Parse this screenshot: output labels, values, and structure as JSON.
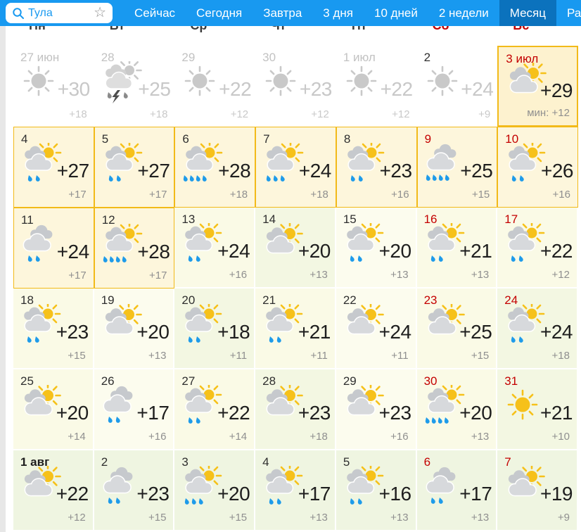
{
  "topbar": {
    "search": {
      "value": "Тула",
      "icon": "search",
      "favorite_icon": "star-outline"
    },
    "tabs": [
      {
        "label": "Сейчас",
        "active": false
      },
      {
        "label": "Сегодня",
        "active": false
      },
      {
        "label": "Завтра",
        "active": false
      },
      {
        "label": "3 дня",
        "active": false
      },
      {
        "label": "10 дней",
        "active": false
      },
      {
        "label": "2 недели",
        "active": false
      },
      {
        "label": "Месяц",
        "active": true
      },
      {
        "label": "Радар",
        "active": false
      }
    ]
  },
  "weekdays": [
    {
      "label": "Пн",
      "weekend": false
    },
    {
      "label": "Вт",
      "weekend": false
    },
    {
      "label": "Ср",
      "weekend": false
    },
    {
      "label": "Чт",
      "weekend": false
    },
    {
      "label": "Пт",
      "weekend": false
    },
    {
      "label": "Сб",
      "weekend": true
    },
    {
      "label": "Вс",
      "weekend": true
    }
  ],
  "colors": {
    "bar_blue": "#1899f0",
    "active_tab_blue": "#0b72bd",
    "weekend_red": "#c40000",
    "highlight_border": "#f2ba19",
    "highlight_bg": "#fdf6dc",
    "today_bg": "#fdf2cf",
    "rain_blue": "#1e9bea",
    "sun_yellow": "#f6c11a"
  },
  "calendar": {
    "days": [
      {
        "date": "27 июн",
        "date_style": "past",
        "icon": "sun",
        "drops": 0,
        "max": "+30",
        "min": "+18",
        "cell": "past",
        "gray": true
      },
      {
        "date": "28",
        "date_style": "past",
        "icon": "storm",
        "drops": 2,
        "max": "+25",
        "min": "+18",
        "cell": "past",
        "gray": true
      },
      {
        "date": "29",
        "date_style": "past",
        "icon": "sun",
        "drops": 0,
        "max": "+22",
        "min": "+12",
        "cell": "past",
        "gray": true
      },
      {
        "date": "30",
        "date_style": "past",
        "icon": "sun",
        "drops": 0,
        "max": "+23",
        "min": "+12",
        "cell": "past",
        "gray": true
      },
      {
        "date": "1 июл",
        "date_style": "past",
        "icon": "sun",
        "drops": 0,
        "max": "+22",
        "min": "+12",
        "cell": "past",
        "gray": true
      },
      {
        "date": "2",
        "date_style": "dark",
        "icon": "sun",
        "drops": 0,
        "max": "+24",
        "min": "+9",
        "cell": "past",
        "gray": true
      },
      {
        "date": "3 июл",
        "date_style": "today",
        "icon": "cloud-sun",
        "drops": 0,
        "max": "+29",
        "min": "мин: +12",
        "cell": "today",
        "gray": false
      },
      {
        "date": "4",
        "date_style": "normal",
        "icon": "cloud-sun-rain",
        "drops": 2,
        "max": "+27",
        "min": "+17",
        "cell": "hl",
        "gray": false
      },
      {
        "date": "5",
        "date_style": "normal",
        "icon": "cloud-sun-rain",
        "drops": 2,
        "max": "+27",
        "min": "+17",
        "cell": "hl",
        "gray": false
      },
      {
        "date": "6",
        "date_style": "normal",
        "icon": "cloud-sun-rain",
        "drops": 4,
        "max": "+28",
        "min": "+18",
        "cell": "hl",
        "gray": false
      },
      {
        "date": "7",
        "date_style": "normal",
        "icon": "cloud-sun-rain",
        "drops": 3,
        "max": "+24",
        "min": "+18",
        "cell": "hl",
        "gray": false
      },
      {
        "date": "8",
        "date_style": "normal",
        "icon": "cloud-sun-rain",
        "drops": 2,
        "max": "+23",
        "min": "+16",
        "cell": "hl",
        "gray": false
      },
      {
        "date": "9",
        "date_style": "weekend",
        "icon": "cloud-rain",
        "drops": 4,
        "max": "+25",
        "min": "+15",
        "cell": "hl",
        "gray": false
      },
      {
        "date": "10",
        "date_style": "weekend",
        "icon": "cloud-sun-rain",
        "drops": 2,
        "max": "+26",
        "min": "+16",
        "cell": "hl",
        "gray": false
      },
      {
        "date": "11",
        "date_style": "normal",
        "icon": "cloud-rain",
        "drops": 2,
        "max": "+24",
        "min": "+17",
        "cell": "hl",
        "gray": false
      },
      {
        "date": "12",
        "date_style": "normal",
        "icon": "cloud-sun-rain",
        "drops": 4,
        "max": "+28",
        "min": "+17",
        "cell": "hl",
        "gray": false
      },
      {
        "date": "13",
        "date_style": "normal",
        "icon": "cloud-sun-rain",
        "drops": 2,
        "max": "+24",
        "min": "+16",
        "cell": "t1",
        "gray": false
      },
      {
        "date": "14",
        "date_style": "normal",
        "icon": "cloud-sun",
        "drops": 0,
        "max": "+20",
        "min": "+13",
        "cell": "t2",
        "gray": false
      },
      {
        "date": "15",
        "date_style": "normal",
        "icon": "cloud-sun-rain",
        "drops": 2,
        "max": "+20",
        "min": "+13",
        "cell": "t3",
        "gray": false
      },
      {
        "date": "16",
        "date_style": "weekend",
        "icon": "cloud-sun-rain",
        "drops": 2,
        "max": "+21",
        "min": "+13",
        "cell": "t1",
        "gray": false
      },
      {
        "date": "17",
        "date_style": "weekend",
        "icon": "cloud-sun-rain",
        "drops": 2,
        "max": "+22",
        "min": "+12",
        "cell": "t1",
        "gray": false
      },
      {
        "date": "18",
        "date_style": "normal",
        "icon": "cloud-sun-rain",
        "drops": 2,
        "max": "+23",
        "min": "+15",
        "cell": "t1",
        "gray": false
      },
      {
        "date": "19",
        "date_style": "normal",
        "icon": "cloud-sun",
        "drops": 0,
        "max": "+20",
        "min": "+13",
        "cell": "t3",
        "gray": false
      },
      {
        "date": "20",
        "date_style": "normal",
        "icon": "cloud-sun-rain",
        "drops": 2,
        "max": "+18",
        "min": "+11",
        "cell": "t2",
        "gray": false
      },
      {
        "date": "21",
        "date_style": "normal",
        "icon": "cloud-sun-rain",
        "drops": 2,
        "max": "+21",
        "min": "+11",
        "cell": "t1",
        "gray": false
      },
      {
        "date": "22",
        "date_style": "normal",
        "icon": "cloud-sun",
        "drops": 0,
        "max": "+24",
        "min": "+11",
        "cell": "t3",
        "gray": false
      },
      {
        "date": "23",
        "date_style": "weekend",
        "icon": "cloud-sun",
        "drops": 0,
        "max": "+25",
        "min": "+15",
        "cell": "t1",
        "gray": false
      },
      {
        "date": "24",
        "date_style": "weekend",
        "icon": "cloud-sun-rain",
        "drops": 2,
        "max": "+24",
        "min": "+18",
        "cell": "t2",
        "gray": false
      },
      {
        "date": "25",
        "date_style": "normal",
        "icon": "cloud-sun",
        "drops": 0,
        "max": "+20",
        "min": "+14",
        "cell": "t1",
        "gray": false
      },
      {
        "date": "26",
        "date_style": "normal",
        "icon": "cloud-rain",
        "drops": 2,
        "max": "+17",
        "min": "+16",
        "cell": "t3",
        "gray": false
      },
      {
        "date": "27",
        "date_style": "normal",
        "icon": "cloud-sun-rain",
        "drops": 2,
        "max": "+22",
        "min": "+14",
        "cell": "t1",
        "gray": false
      },
      {
        "date": "28",
        "date_style": "normal",
        "icon": "cloud-sun",
        "drops": 0,
        "max": "+23",
        "min": "+18",
        "cell": "t2",
        "gray": false
      },
      {
        "date": "29",
        "date_style": "normal",
        "icon": "cloud-sun",
        "drops": 0,
        "max": "+23",
        "min": "+16",
        "cell": "t3",
        "gray": false
      },
      {
        "date": "30",
        "date_style": "weekend",
        "icon": "cloud-sun-rain",
        "drops": 4,
        "max": "+20",
        "min": "+13",
        "cell": "t1",
        "gray": false
      },
      {
        "date": "31",
        "date_style": "weekend",
        "icon": "sun",
        "drops": 0,
        "max": "+21",
        "min": "+10",
        "cell": "t2",
        "gray": false
      },
      {
        "date": "1 авг",
        "date_style": "bold",
        "icon": "cloud-sun",
        "drops": 0,
        "max": "+22",
        "min": "+12",
        "cell": "t4",
        "gray": false
      },
      {
        "date": "2",
        "date_style": "normal",
        "icon": "cloud-rain",
        "drops": 2,
        "max": "+23",
        "min": "+15",
        "cell": "t4",
        "gray": false
      },
      {
        "date": "3",
        "date_style": "normal",
        "icon": "cloud-sun-rain",
        "drops": 3,
        "max": "+20",
        "min": "+15",
        "cell": "t4",
        "gray": false
      },
      {
        "date": "4",
        "date_style": "normal",
        "icon": "cloud-sun-rain",
        "drops": 2,
        "max": "+17",
        "min": "+13",
        "cell": "t4",
        "gray": false
      },
      {
        "date": "5",
        "date_style": "normal",
        "icon": "cloud-sun-rain",
        "drops": 2,
        "max": "+16",
        "min": "+13",
        "cell": "t4",
        "gray": false
      },
      {
        "date": "6",
        "date_style": "weekend",
        "icon": "cloud-rain",
        "drops": 2,
        "max": "+17",
        "min": "+13",
        "cell": "t4",
        "gray": false
      },
      {
        "date": "7",
        "date_style": "weekend",
        "icon": "cloud-sun",
        "drops": 0,
        "max": "+19",
        "min": "+9",
        "cell": "t4",
        "gray": false
      }
    ]
  }
}
